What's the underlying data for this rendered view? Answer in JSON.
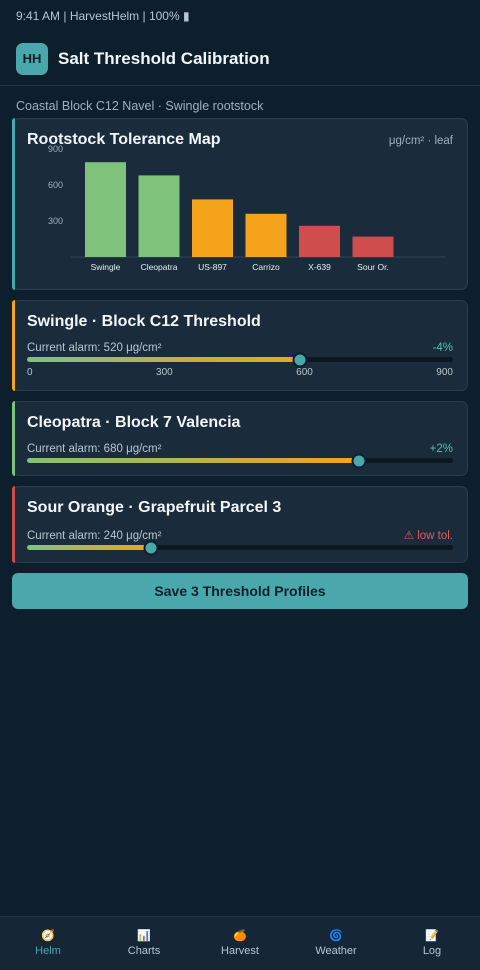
{
  "status_bar": {
    "text": "9:41 AM | HarvestHelm | 100% ▮"
  },
  "header": {
    "logo": "HH",
    "title": "Salt Threshold Calibration"
  },
  "context": "Coastal Block C12 Navel · Swingle rootstock",
  "tolerance_map": {
    "title": "Rootstock Tolerance Map",
    "unit": "μg/cm² · leaf"
  },
  "chart_data": {
    "type": "bar",
    "title": "Rootstock Tolerance Map",
    "ylabel": "",
    "xlabel": "",
    "ylim": [
      0,
      1050
    ],
    "yticks": [
      300,
      600,
      900
    ],
    "categories": [
      "Swingle",
      "Cleopatra",
      "US-897",
      "Carrizo",
      "X-639",
      "Sour Or."
    ],
    "values": [
      790,
      680,
      480,
      360,
      260,
      170
    ],
    "colors": [
      "#7ec27c",
      "#7ec27c",
      "#f4a31a",
      "#f4a31a",
      "#cf4d4d",
      "#cf4d4d"
    ],
    "grid": false
  },
  "thresholds": [
    {
      "title": "Swingle · Block C12 Threshold",
      "alarm": "Current alarm: 520 μg/cm²",
      "delta": "-4%",
      "level_fraction": 0.64,
      "accent": "#f4a31a",
      "scale": [
        "0",
        "300",
        "600",
        "900"
      ]
    },
    {
      "title": "Cleopatra · Block 7 Valencia",
      "alarm": "Current alarm: 680 μg/cm²",
      "delta": "+2%",
      "level_fraction": 0.78,
      "accent": "#7ec27c"
    },
    {
      "title": "Sour Orange · Grapefruit Parcel 3",
      "alarm": "Current alarm: 240 μg/cm²",
      "delta": "⚠ low tol.",
      "level_fraction": 0.29,
      "accent": "#cf4d4d"
    }
  ],
  "save_label": "Save 3 Threshold Profiles",
  "nav": [
    {
      "icon": "🧭",
      "label": "Helm",
      "icon_name": "compass-icon"
    },
    {
      "icon": "📊",
      "label": "Charts",
      "icon_name": "chart-icon"
    },
    {
      "icon": "🍊",
      "label": "Harvest",
      "icon_name": "orange-icon"
    },
    {
      "icon": "🌀",
      "label": "Weather",
      "icon_name": "cyclone-icon"
    },
    {
      "icon": "📝",
      "label": "Log",
      "icon_name": "memo-icon"
    }
  ],
  "accent_color": "#4aa8ac"
}
